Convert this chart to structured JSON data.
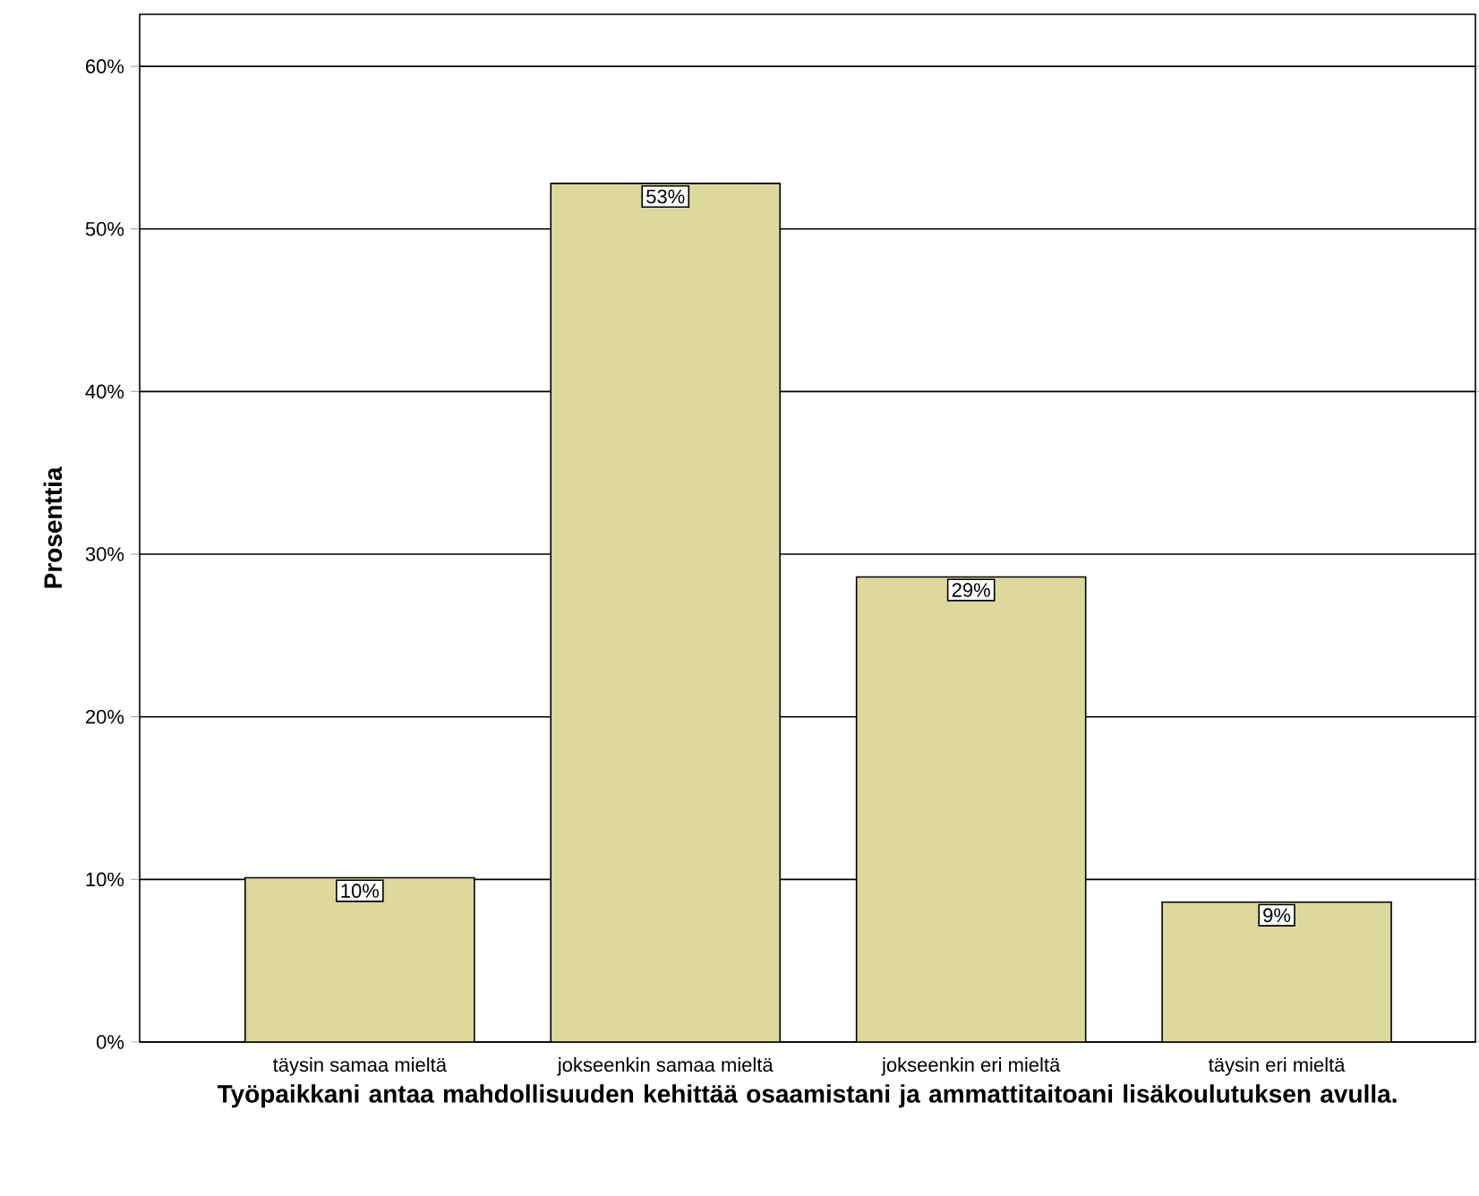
{
  "chart_data": {
    "type": "bar",
    "xlabel": "Työpaikkani antaa mahdollisuuden kehittää osaamistani ja ammattitaitoani lisäkoulutuksen avulla.",
    "ylabel": "Prosenttia",
    "categories": [
      "täysin samaa mieltä",
      "jokseenkin samaa mieltä",
      "jokseenkin eri mieltä",
      "täysin eri mieltä"
    ],
    "values": [
      10.1,
      52.8,
      28.6,
      8.6
    ],
    "value_labels": [
      "10%",
      "53%",
      "29%",
      "9%"
    ],
    "color": "#ddd89b",
    "ylim": [
      0,
      63.2
    ],
    "yticks": [
      {
        "value": 0,
        "label": "0%"
      },
      {
        "value": 10,
        "label": "10%"
      },
      {
        "value": 20,
        "label": "20%"
      },
      {
        "value": 30,
        "label": "30%"
      },
      {
        "value": 40,
        "label": "40%"
      },
      {
        "value": 50,
        "label": "50%"
      },
      {
        "value": 60,
        "label": "60%"
      }
    ],
    "grid": "y"
  }
}
